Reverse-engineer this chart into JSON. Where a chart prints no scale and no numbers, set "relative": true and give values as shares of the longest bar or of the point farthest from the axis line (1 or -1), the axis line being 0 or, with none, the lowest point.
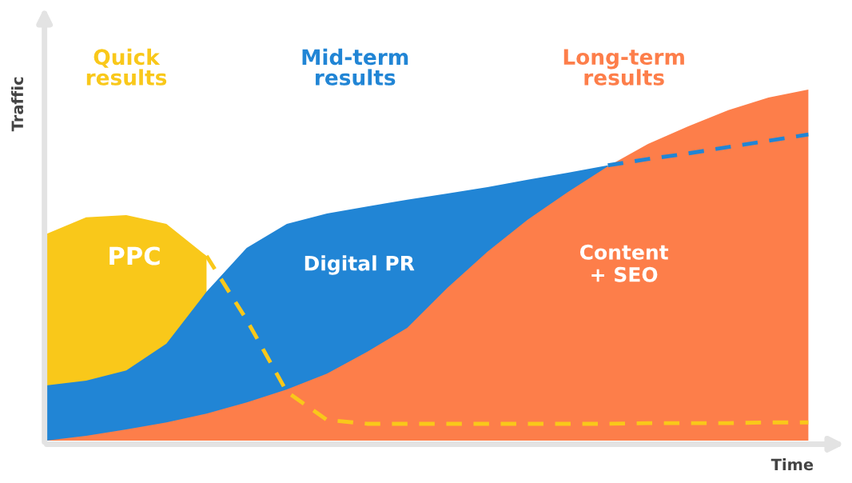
{
  "chart_data": {
    "type": "area",
    "relative": true,
    "xlabel": "Time",
    "ylabel": "Traffic",
    "annotations": [
      "Quick\nresults",
      "Mid-term\nresults",
      "Long-term\nresults"
    ],
    "categories": [
      null,
      null,
      null,
      null,
      null,
      null,
      null,
      null,
      null,
      null,
      null,
      null,
      null,
      null,
      null,
      null,
      null,
      null,
      null,
      null
    ],
    "series": [
      {
        "name": "PPC",
        "color": "#f9c81a",
        "values": [
          0.588,
          0.636,
          0.642,
          0.617,
          0.526,
          null,
          null,
          null,
          null,
          null,
          null,
          null,
          null,
          null,
          null,
          null,
          null,
          null,
          null,
          null
        ]
      },
      {
        "name": "Digital PR",
        "color": "#2185d5",
        "values": [
          0.157,
          0.171,
          0.2,
          0.276,
          0.424,
          0.549,
          0.617,
          0.647,
          0.667,
          0.686,
          0.704,
          0.722,
          0.743,
          0.763,
          0.784,
          null,
          null,
          null,
          null,
          null
        ]
      },
      {
        "name": "Content\n+ SEO",
        "color": "#fd7e4a",
        "values": [
          0,
          0.014,
          0.032,
          0.052,
          0.077,
          0.109,
          0.146,
          0.191,
          0.253,
          0.321,
          0.435,
          0.538,
          0.629,
          0.708,
          0.781,
          0.845,
          0.895,
          0.941,
          0.977,
          1.0
        ]
      },
      {
        "type": "line",
        "line_style": "dashed",
        "color": "#f9c81a",
        "values": [
          null,
          null,
          null,
          null,
          0.526,
          0.344,
          0.139,
          0.059,
          0.048,
          0.048,
          0.048,
          0.048,
          0.048,
          0.048,
          0.048,
          0.05,
          0.05,
          0.05,
          0.052,
          0.052
        ]
      },
      {
        "type": "line",
        "line_style": "dashed",
        "color": "#2185d5",
        "values": [
          null,
          null,
          null,
          null,
          null,
          null,
          null,
          null,
          null,
          null,
          null,
          null,
          null,
          null,
          0.784,
          0.802,
          0.818,
          0.836,
          0.854,
          0.872
        ]
      }
    ]
  }
}
